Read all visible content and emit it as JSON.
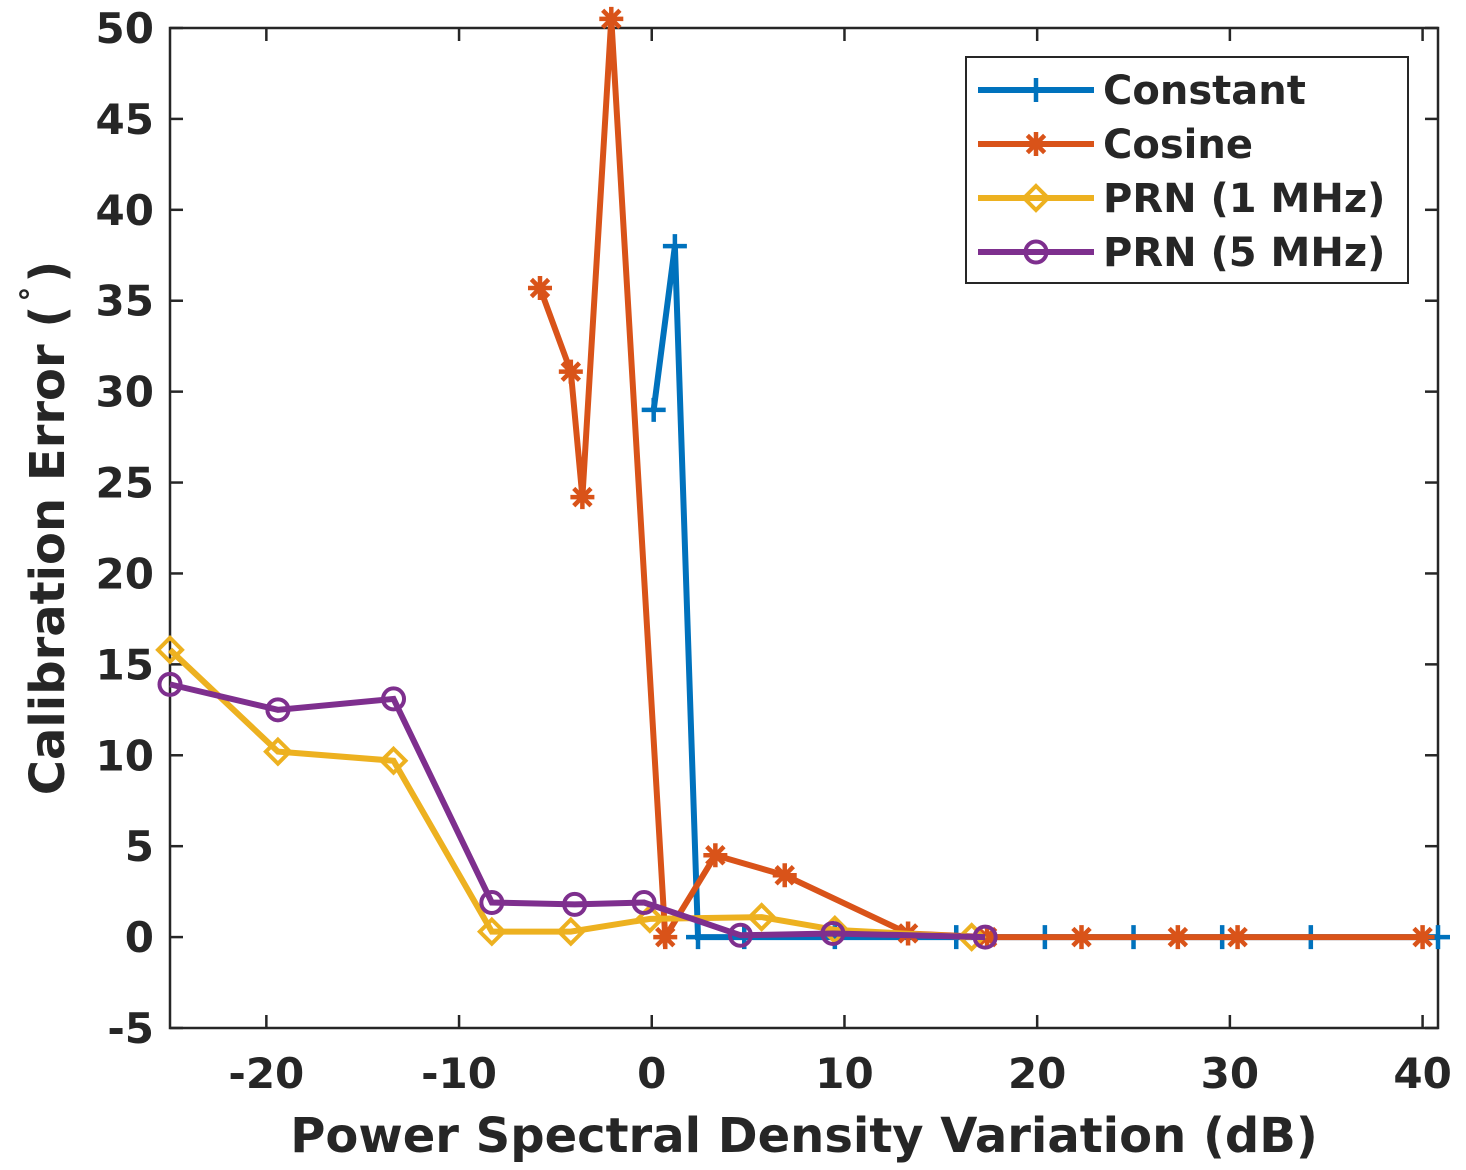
{
  "chart_data": {
    "type": "line",
    "title": "",
    "xlabel": "Power Spectral Density Variation (dB)",
    "ylabel": "Calibration Error (°)",
    "ylabel_main": "Calibration Error (",
    "ylabel_degree": "°",
    "ylabel_close": ")",
    "xlim": [
      -25,
      40.8
    ],
    "ylim": [
      -5,
      50
    ],
    "xticks": [
      -20,
      -10,
      0,
      10,
      20,
      30,
      40
    ],
    "xtick_labels": [
      "-20",
      "-10",
      "0",
      "10",
      "20",
      "30",
      "40"
    ],
    "yticks": [
      -5,
      0,
      5,
      10,
      15,
      20,
      25,
      30,
      35,
      40,
      45,
      50
    ],
    "ytick_labels": [
      "-5",
      "0",
      "5",
      "10",
      "15",
      "20",
      "25",
      "30",
      "35",
      "40",
      "45",
      "50"
    ],
    "legend_position": "top-right",
    "series": [
      {
        "name": "Constant",
        "color": "#0072BD",
        "marker": "plus",
        "x": [
          0.1,
          1.2,
          2.4,
          4.8,
          9.5,
          15.8,
          20.4,
          25.0,
          29.6,
          34.2,
          40.8
        ],
        "y": [
          29.0,
          38.0,
          0.0,
          0.0,
          0.0,
          0.0,
          0.0,
          0.0,
          0.0,
          0.0,
          0.0
        ]
      },
      {
        "name": "Cosine",
        "color": "#D95319",
        "marker": "star",
        "x": [
          -5.8,
          -4.2,
          -3.6,
          -2.1,
          0.7,
          3.3,
          6.9,
          13.3,
          17.4,
          22.3,
          27.3,
          30.4,
          40.0
        ],
        "y": [
          35.7,
          31.1,
          24.2,
          50.5,
          0.0,
          4.5,
          3.4,
          0.2,
          0.0,
          0.0,
          0.0,
          0.0,
          0.0
        ]
      },
      {
        "name": "PRN (1 MHz)",
        "color": "#EDB120",
        "marker": "diamond",
        "x": [
          -25.0,
          -19.4,
          -13.4,
          -8.3,
          -4.2,
          -0.1,
          5.7,
          9.5,
          16.6
        ],
        "y": [
          15.8,
          10.2,
          9.7,
          0.3,
          0.3,
          1.0,
          1.1,
          0.4,
          0.0
        ]
      },
      {
        "name": "PRN (5 MHz)",
        "color": "#7E2F8E",
        "marker": "circle",
        "x": [
          -25.0,
          -19.4,
          -13.4,
          -8.3,
          -4.0,
          -0.4,
          4.6,
          9.4,
          17.3
        ],
        "y": [
          13.9,
          12.5,
          13.1,
          1.9,
          1.8,
          1.9,
          0.1,
          0.2,
          0.0
        ]
      }
    ]
  }
}
